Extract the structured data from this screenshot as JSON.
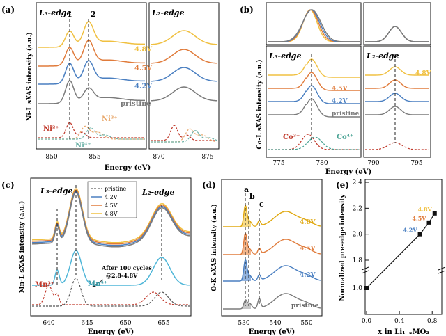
{
  "colors": {
    "pristine": "#7b7b7b",
    "v42": "#4a7fc1",
    "v45": "#e07b3b",
    "v48": "#f0c040",
    "ni2": "#c0392b",
    "ni3": "#e8a86c",
    "ni4": "#6fb3a8",
    "mn": "#c0392b",
    "cycle": "#4fb6d8"
  },
  "panel_a": {
    "label": "(a)",
    "edge_l3": "L₃-edge",
    "edge_l2": "L₂-edge",
    "ylabel": "Ni-L sXAS intensity (a.u.)",
    "xlabel": "Energy (eV)",
    "peak1": "1",
    "peak2": "2",
    "species_ni2": "Ni²⁺",
    "species_ni3": "Ni³⁺",
    "species_ni4": "Ni⁴⁺",
    "xticks_l3": [
      "850",
      "855"
    ],
    "xticks_l2": [
      "870",
      "875"
    ],
    "curve_labels": [
      "4.8V",
      "4.5V",
      "4.2V",
      "pristine"
    ]
  },
  "panel_b": {
    "label": "(b)",
    "edge_l3": "L₃-edge",
    "edge_l2": "L₂-edge",
    "ylabel": "Co-L sXAS intensity (a.u.)",
    "xlabel": "Energy (eV)",
    "species_co3": "Co³⁺",
    "species_co4": "Co⁴⁺",
    "xticks_l3": [
      "775",
      "780"
    ],
    "xticks_l2": [
      "790",
      "795"
    ],
    "curve_labels": [
      "4.8V",
      "4.5V",
      "4.2V",
      "pristine"
    ]
  },
  "panel_c": {
    "label": "(c)",
    "edge_l3": "L₃-edge",
    "edge_l2": "L₂-edge",
    "ylabel": "Mn-L sXAS intensity (a.u.)",
    "xlabel": "Energy (eV)",
    "legend": [
      "pristine",
      "4.2V",
      "4.5V",
      "4.8V"
    ],
    "annotation_line1": "After 100 cycles",
    "annotation_line2": "@2.8-4.8V",
    "species_mn3": "Mn³⁺",
    "species_mn4": "Mn⁴⁺",
    "xticks": [
      "640",
      "645",
      "650",
      "655"
    ]
  },
  "panel_d": {
    "label": "(d)",
    "ylabel": "O-K sXAS intensity (a.u.)",
    "xlabel": "Energy (eV)",
    "peak_a": "a",
    "peak_b": "b",
    "peak_c": "c",
    "curve_labels": [
      "4.8V",
      "4.5V",
      "4.2V",
      "pristine"
    ],
    "xticks": [
      "530",
      "540",
      "550"
    ]
  },
  "chart_data": {
    "type": "scatter",
    "label": "(e)",
    "xlabel": "x in Li₁₋ₓMO₂",
    "ylabel": "Normalized pre-edge intensity",
    "xlim": [
      0.0,
      0.9
    ],
    "xticks": [
      "0.0",
      "0.4",
      "0.8"
    ],
    "yticks_upper": [
      "1.8",
      "2.0",
      "2.2",
      "2.4"
    ],
    "yticks_lower": [
      "1.0"
    ],
    "points": [
      {
        "name": "pristine",
        "x": 0.0,
        "y": 1.0,
        "label": ""
      },
      {
        "name": "4.2V",
        "x": 0.65,
        "y": 2.0,
        "label": "4.2V"
      },
      {
        "name": "4.5V",
        "x": 0.76,
        "y": 2.09,
        "label": "4.5V"
      },
      {
        "name": "4.8V",
        "x": 0.83,
        "y": 2.16,
        "label": "4.8V"
      }
    ]
  }
}
